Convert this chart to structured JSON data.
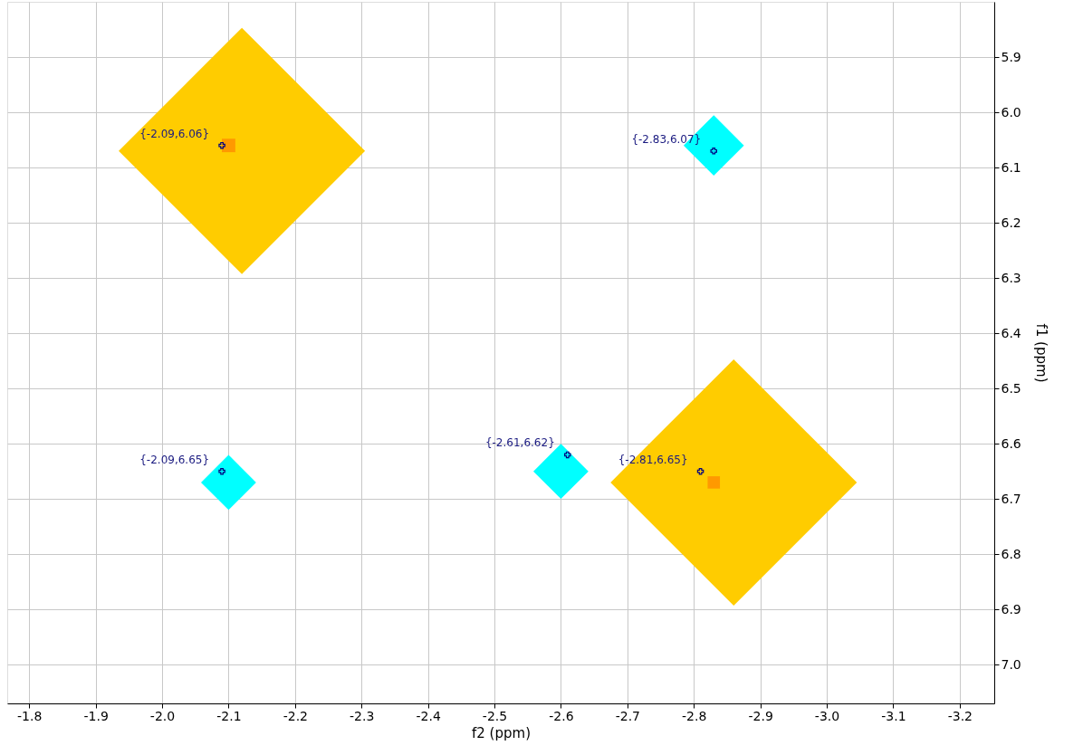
{
  "chart_data": {
    "type": "bubble",
    "xlabel": "f2 (ppm)",
    "ylabel": "f1 (ppm)",
    "xlim": [
      -1.767,
      -3.252
    ],
    "ylim": [
      7.07,
      5.8
    ],
    "xticks": [
      -1.8,
      -1.9,
      {
        "value": -2,
        "label": "-2.0"
      },
      -2.1,
      -2.2,
      -2.3,
      -2.4,
      -2.5,
      -2.6,
      -2.7,
      -2.8,
      -2.9,
      {
        "value": -3,
        "label": "-3.0"
      },
      -3.1,
      -3.2
    ],
    "yticks": [
      5.9,
      {
        "value": 6,
        "label": "6.0"
      },
      6.1,
      6.2,
      6.3,
      6.4,
      6.5,
      6.6,
      6.7,
      6.8,
      6.9,
      {
        "value": 7,
        "label": "7.0"
      }
    ],
    "grid": true,
    "legend": false,
    "marker": "diamond",
    "series": [
      {
        "color": "#ffcc00",
        "x": [
          -2.12,
          -2.86
        ],
        "values": [
          6.07,
          6.67
        ],
        "sizes": [
          1,
          1
        ]
      },
      {
        "color": "#00ffff",
        "x": [
          -2.83,
          -2.1,
          -2.6
        ],
        "values": [
          6.06,
          6.67,
          6.65
        ],
        "sizes": [
          0.06,
          0.05,
          0.05
        ]
      },
      {
        "color": "#ff9900",
        "marker": "square",
        "x": [
          -2.1,
          -2.83
        ],
        "values": [
          6.06,
          6.67
        ],
        "sizes": [
          0.006,
          0.005
        ]
      },
      {
        "type": "scatter",
        "color": "#000080",
        "marker": "cross",
        "x": [
          -2.09,
          -2.83,
          -2.09,
          -2.61,
          -2.81
        ],
        "values": [
          6.06,
          6.07,
          6.65,
          6.62,
          6.65
        ]
      }
    ],
    "annotations": [
      {
        "text": "{-2.09,6.06}",
        "x": -2.09,
        "y": 6.06
      },
      {
        "text": "{-2.83,6.07}",
        "x": -2.83,
        "y": 6.07
      },
      {
        "text": "{-2.09,6.65}",
        "x": -2.09,
        "y": 6.65
      },
      {
        "text": "{-2.61,6.62}",
        "x": -2.61,
        "y": 6.62
      },
      {
        "text": "{-2.81,6.65}",
        "x": -2.81,
        "y": 6.65
      }
    ]
  }
}
